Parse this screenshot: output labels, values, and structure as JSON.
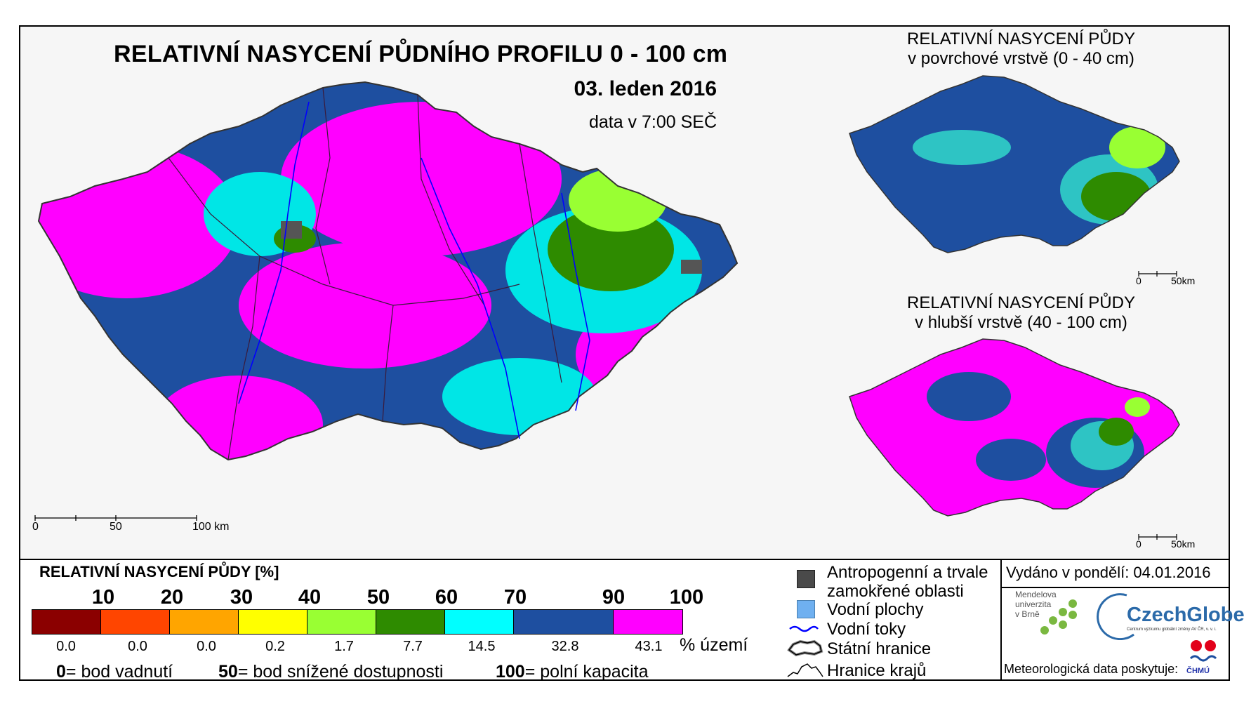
{
  "main": {
    "title": "RELATIVNÍ NASYCENÍ PŮDNÍHO PROFILU 0 - 100 cm",
    "date": "03. leden 2016",
    "time": "data v 7:00 SEČ",
    "scale": [
      "0",
      "50",
      "100 km"
    ]
  },
  "inset_top": {
    "title_line1": "RELATIVNÍ NASYCENÍ PŮDY",
    "title_line2": "v povrchové vrstvě (0 - 40 cm)",
    "scale": [
      "0",
      "50km"
    ]
  },
  "inset_bottom": {
    "title_line1": "RELATIVNÍ NASYCENÍ PŮDY",
    "title_line2": "v hlubší vrstvě (40 - 100 cm)",
    "scale": [
      "0",
      "50km"
    ]
  },
  "legend": {
    "title": "RELATIVNÍ NASYCENÍ PŮDY [%]",
    "thresholds": [
      "10",
      "20",
      "30",
      "40",
      "50",
      "60",
      "70",
      "90",
      "100"
    ],
    "classes": [
      {
        "color": "#8b0000",
        "pct": "0.0"
      },
      {
        "color": "#ff4500",
        "pct": "0.0"
      },
      {
        "color": "#ffa500",
        "pct": "0.0"
      },
      {
        "color": "#ffff00",
        "pct": "0.2"
      },
      {
        "color": "#99ff33",
        "pct": "1.7"
      },
      {
        "color": "#2e8b00",
        "pct": "7.7"
      },
      {
        "color": "#00ffff",
        "pct": "14.5"
      },
      {
        "color": "#1e4fa0",
        "pct": "32.8"
      },
      {
        "color": "#ff00ff",
        "pct": "43.1"
      }
    ],
    "unit": "% území",
    "def_0_num": "0",
    "def_0_text": "= bod vadnutí",
    "def_50_num": "50",
    "def_50_text": "= bod snížené dostupnosti",
    "def_100_num": "100",
    "def_100_text": "= polní kapacita"
  },
  "map_legend": {
    "anthropogenic_line1": "Antropogenní a trvale",
    "anthropogenic_line2": "zamokřené oblasti",
    "water_areas": "Vodní plochy",
    "rivers": "Vodní toky",
    "state_border": "Státní hranice",
    "region_border": "Hranice krajů",
    "colors": {
      "anthropogenic": "#4a4a4a",
      "water": "#6fb0f0",
      "river": "#0000ff"
    }
  },
  "info": {
    "issued": "Vydáno v pondělí: 04.01.2016",
    "mendel": [
      "Mendelova",
      "univerzita",
      "v Brně"
    ],
    "czechglobe": "CzechGlobe",
    "czechglobe_sub": "Centrum výzkumu globální změny AV ČR, v. v. i.",
    "provider": "Meteorologická data poskytuje:",
    "chmu": "ČHMÚ"
  }
}
